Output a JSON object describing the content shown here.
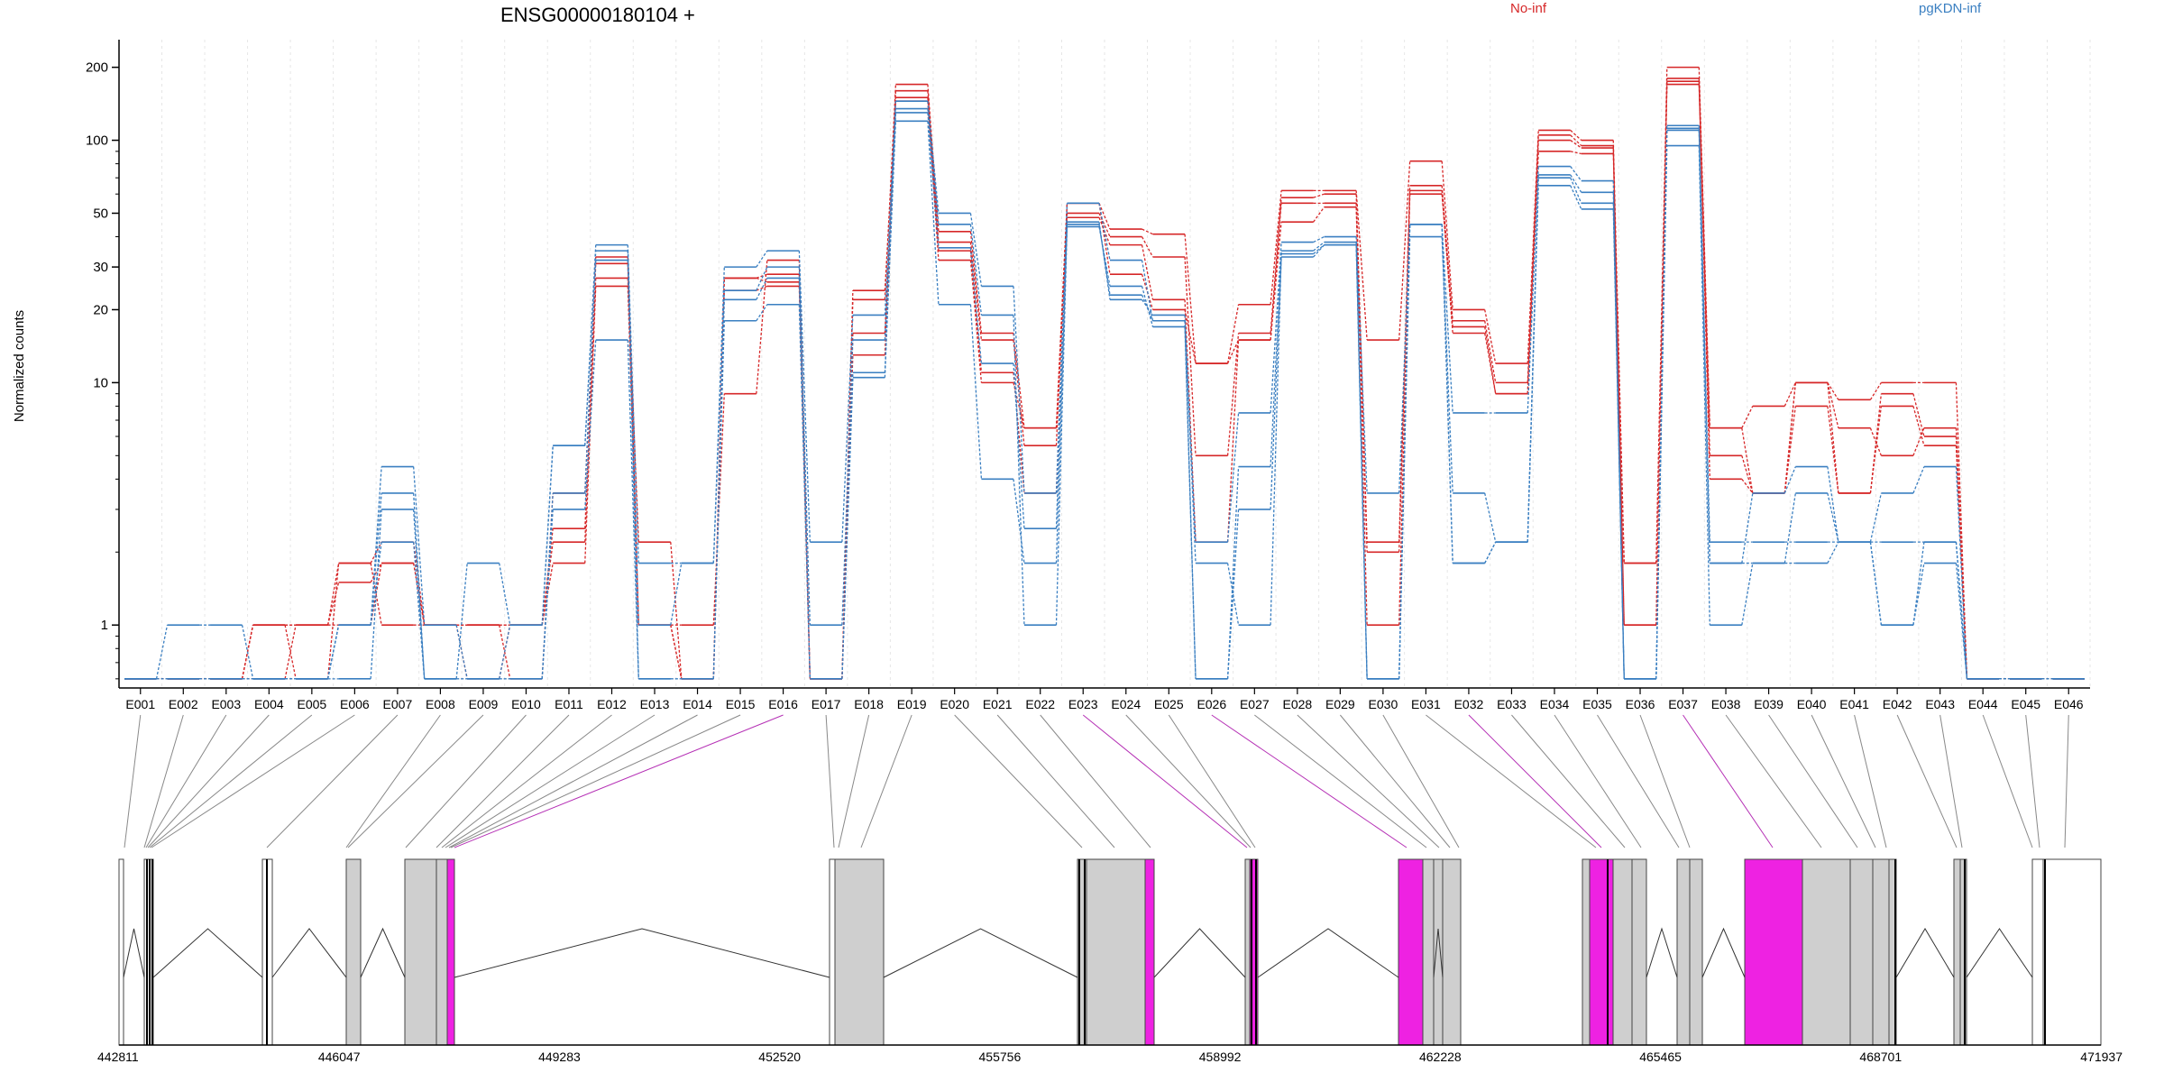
{
  "chart_data": {
    "type": "line",
    "title": "ENSG00000180104 +",
    "ylabel": "Normalized counts",
    "ylog": true,
    "ylim": [
      0.55,
      260
    ],
    "yticks": [
      1,
      10,
      20,
      30,
      50,
      100,
      200
    ],
    "ytick_labels": [
      "1",
      "10",
      "20",
      "30",
      "50",
      "100",
      "200"
    ],
    "grid": "vertical dotted lines at exon boundaries",
    "legend": [
      {
        "label": "No-inf",
        "color": "#d62728"
      },
      {
        "label": "pgKDN-inf",
        "color": "#3a7fc1"
      }
    ],
    "categories": [
      "E001",
      "E002",
      "E003",
      "E004",
      "E005",
      "E006",
      "E007",
      "E008",
      "E009",
      "E010",
      "E011",
      "E012",
      "E013",
      "E014",
      "E015",
      "E016",
      "E017",
      "E018",
      "E019",
      "E020",
      "E021",
      "E022",
      "E023",
      "E024",
      "E025",
      "E026",
      "E027",
      "E028",
      "E029",
      "E030",
      "E031",
      "E032",
      "E033",
      "E034",
      "E035",
      "E036",
      "E037",
      "E038",
      "E039",
      "E040",
      "E041",
      "E042",
      "E043",
      "E044",
      "E045",
      "E046"
    ],
    "series": [
      {
        "group": "No-inf",
        "values": [
          0.6,
          0.6,
          0.6,
          1.0,
          1.0,
          1.8,
          2.2,
          1.0,
          1.0,
          1.0,
          1.8,
          25,
          1.0,
          0.6,
          27,
          26,
          0.6,
          22,
          170,
          42,
          16,
          6.5,
          55,
          43,
          41,
          12,
          21,
          62,
          62,
          15,
          82,
          20,
          12,
          110,
          100,
          1.8,
          200,
          6.5,
          8,
          10,
          8.5,
          10,
          10,
          0.6,
          0.6,
          0.6
        ]
      },
      {
        "group": "No-inf",
        "values": [
          0.6,
          0.6,
          0.6,
          1.0,
          1.0,
          1.5,
          1.8,
          1.0,
          0.6,
          1.0,
          2.5,
          27,
          2.2,
          0.6,
          24,
          25,
          0.6,
          16,
          150,
          38,
          15,
          5.5,
          50,
          40,
          33,
          5,
          16,
          58,
          60,
          2.2,
          65,
          18,
          10,
          105,
          95,
          1.0,
          180,
          5,
          3.5,
          10,
          3.5,
          9,
          6,
          0.6,
          0.6,
          0.6
        ]
      },
      {
        "group": "No-inf",
        "values": [
          0.6,
          0.6,
          0.6,
          0.6,
          1.0,
          1.0,
          1.8,
          1.0,
          1.0,
          1.0,
          2.2,
          31,
          1.0,
          0.6,
          27,
          28,
          0.6,
          13,
          160,
          35,
          11,
          3.5,
          48,
          37,
          22,
          2.2,
          15,
          55,
          55,
          2.0,
          60,
          17,
          9,
          100,
          93,
          1.0,
          175,
          4,
          3.5,
          8,
          3.5,
          8,
          5.5,
          0.6,
          0.6,
          0.6
        ]
      },
      {
        "group": "No-inf",
        "values": [
          0.6,
          0.6,
          0.6,
          1.0,
          0.6,
          1.8,
          1.0,
          1.0,
          1.0,
          0.6,
          3.5,
          33,
          1.0,
          1.0,
          9,
          32,
          0.6,
          24,
          145,
          32,
          10,
          6.5,
          55,
          28,
          20,
          12,
          15,
          46,
          53,
          1.0,
          62,
          16,
          9,
          90,
          88,
          1.8,
          170,
          6.5,
          3.5,
          10,
          6.5,
          5,
          6.5,
          0.6,
          0.6,
          0.6
        ]
      },
      {
        "group": "pgKDN-inf",
        "values": [
          0.6,
          1.0,
          1.0,
          0.6,
          0.6,
          1.0,
          4.5,
          1.0,
          0.6,
          1.0,
          5.5,
          37,
          1.8,
          1.8,
          30,
          35,
          2.2,
          19,
          145,
          50,
          25,
          3.5,
          55,
          32,
          18,
          2.2,
          7.5,
          38,
          40,
          3.5,
          45,
          7.5,
          7.5,
          78,
          68,
          0.6,
          115,
          1.8,
          3.5,
          4.5,
          2.2,
          3.5,
          4.5,
          0.6,
          0.6,
          0.6
        ]
      },
      {
        "group": "pgKDN-inf",
        "values": [
          0.6,
          0.6,
          0.6,
          0.6,
          0.6,
          1.0,
          3.5,
          0.6,
          1.8,
          1.0,
          5.5,
          35,
          1.0,
          1.8,
          24,
          30,
          1.0,
          15,
          135,
          45,
          19,
          1.0,
          44,
          25,
          17,
          0.6,
          4.5,
          35,
          38,
          0.6,
          40,
          3.5,
          2.2,
          72,
          61,
          0.6,
          110,
          1.8,
          1.8,
          3.5,
          2.2,
          1.0,
          1.8,
          0.6,
          0.6,
          0.6
        ]
      },
      {
        "group": "pgKDN-inf",
        "values": [
          0.6,
          0.6,
          0.6,
          0.6,
          0.6,
          0.6,
          3.0,
          0.6,
          0.6,
          0.6,
          3.5,
          32,
          0.6,
          0.6,
          22,
          27,
          0.6,
          10.5,
          130,
          36,
          12,
          2.5,
          45,
          23,
          18,
          0.6,
          3.0,
          33,
          37,
          0.6,
          45,
          1.8,
          2.2,
          70,
          55,
          0.6,
          112,
          2.2,
          2.2,
          2.2,
          2.2,
          2.2,
          2.2,
          0.6,
          0.6,
          0.6
        ]
      },
      {
        "group": "pgKDN-inf",
        "values": [
          0.6,
          0.6,
          0.6,
          0.6,
          0.6,
          1.0,
          2.2,
          0.6,
          0.6,
          0.6,
          3.0,
          15,
          0.6,
          0.6,
          18,
          21,
          0.6,
          11,
          120,
          21,
          4,
          1.8,
          46,
          22,
          19,
          1.8,
          1.0,
          34,
          37,
          0.6,
          45,
          1.8,
          2.2,
          65,
          52,
          0.6,
          95,
          1.0,
          1.8,
          1.8,
          2.2,
          1.0,
          2.2,
          0.6,
          0.6,
          0.6
        ]
      }
    ],
    "gene_model": {
      "coordinate_ticks": [
        "442811",
        "446047",
        "449283",
        "452520",
        "455756",
        "458992",
        "462228",
        "465465",
        "468701",
        "471937"
      ],
      "genomic_range": [
        442811,
        471937
      ],
      "highlighted_exons": [
        "E016",
        "E023",
        "E026",
        "E032",
        "E037"
      ],
      "highlight_color": "#ee22e2",
      "exon_color": "#cfcfcf"
    }
  }
}
